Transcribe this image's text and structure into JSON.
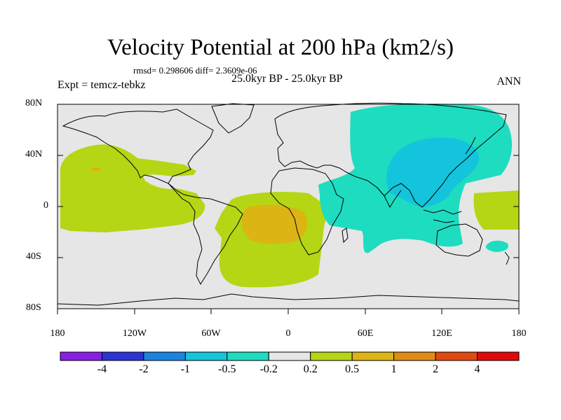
{
  "title": "Velocity Potential at 200 hPa (km2/s)",
  "stats": "rmsd= 0.298606 diff= 2.3609e-06",
  "experiment": "Expt = temcz-tebkz",
  "period": "25.0kyr BP - 25.0kyr BP",
  "season": "ANN",
  "lat_labels": [
    "80N",
    "40N",
    "0",
    "40S",
    "80S"
  ],
  "lon_labels": [
    "180",
    "120W",
    "60W",
    "0",
    "60E",
    "120E",
    "180"
  ],
  "colorbar": {
    "labels": [
      "-4",
      "-2",
      "-1",
      "-0.5",
      "-0.2",
      "0.2",
      "0.5",
      "1",
      "2",
      "4"
    ],
    "colors": [
      "#8a1ee6",
      "#2a34d6",
      "#1a84e0",
      "#14c4dc",
      "#1edcc0",
      "#e6e6e6",
      "#b4d614",
      "#dcb414",
      "#e08c14",
      "#e04a10",
      "#e00a0a"
    ]
  },
  "colors": {
    "ocean_background": "#e6e6e6",
    "positive_weak": "#b4d614",
    "positive_mid": "#dcb414",
    "positive_strong": "#e08c14",
    "negative_weak": "#1edcc0",
    "negative_mid": "#14c4dc"
  }
}
